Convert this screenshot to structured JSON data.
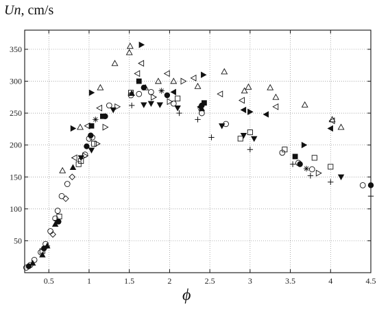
{
  "ylabel": {
    "symbol": "Un",
    "unit": ", cm/s"
  },
  "xlabel": "ϕ",
  "chart_data": {
    "type": "scatter",
    "title": "",
    "xlabel": "ϕ",
    "ylabel": "Un, cm/s",
    "xlim": [
      0.2,
      4.5
    ],
    "ylim": [
      0,
      380
    ],
    "xticks": [
      0.5,
      1,
      1.5,
      2,
      2.5,
      3,
      3.5,
      4,
      4.5
    ],
    "xtick_labels": [
      "0.5",
      "1",
      "1.5",
      "2",
      "2.5",
      "3",
      "3.5",
      "4",
      "4.5"
    ],
    "yticks": [
      50,
      100,
      150,
      200,
      250,
      300,
      350
    ],
    "ytick_labels": [
      "50",
      "100",
      "150",
      "200",
      "250",
      "300",
      "350"
    ],
    "grid": "dotted",
    "series": [
      {
        "marker": "circle-open",
        "points": [
          [
            0.22,
            8
          ],
          [
            0.27,
            12
          ],
          [
            0.32,
            20
          ],
          [
            0.4,
            32
          ],
          [
            0.46,
            45
          ],
          [
            0.52,
            65
          ],
          [
            0.58,
            85
          ],
          [
            0.61,
            97
          ],
          [
            0.66,
            120
          ],
          [
            0.73,
            139
          ],
          [
            0.95,
            185
          ],
          [
            1.0,
            210
          ],
          [
            1.04,
            212
          ],
          [
            1.25,
            262
          ],
          [
            1.52,
            278
          ],
          [
            1.62,
            280
          ],
          [
            1.77,
            283
          ],
          [
            2.05,
            265
          ],
          [
            2.4,
            250
          ],
          [
            2.7,
            233
          ],
          [
            3.4,
            188
          ],
          [
            3.6,
            172
          ],
          [
            3.77,
            162
          ],
          [
            4.4,
            137
          ]
        ]
      },
      {
        "marker": "circle-filled",
        "points": [
          [
            0.25,
            10
          ],
          [
            0.44,
            38
          ],
          [
            0.62,
            80
          ],
          [
            0.97,
            198
          ],
          [
            1.02,
            215
          ],
          [
            1.2,
            245
          ],
          [
            1.68,
            290
          ],
          [
            1.97,
            278
          ],
          [
            2.4,
            262
          ],
          [
            3.62,
            170
          ],
          [
            4.5,
            137
          ]
        ]
      },
      {
        "marker": "square-open",
        "points": [
          [
            0.42,
            34
          ],
          [
            0.63,
            88
          ],
          [
            0.87,
            170
          ],
          [
            0.9,
            175
          ],
          [
            1.06,
            202
          ],
          [
            1.52,
            282
          ],
          [
            2.1,
            273
          ],
          [
            2.88,
            210
          ],
          [
            3.0,
            220
          ],
          [
            3.43,
            193
          ],
          [
            3.8,
            180
          ],
          [
            4.0,
            166
          ]
        ]
      },
      {
        "marker": "square-filled",
        "points": [
          [
            1.03,
            230
          ],
          [
            1.17,
            245
          ],
          [
            1.62,
            300
          ],
          [
            2.43,
            266
          ],
          [
            3.56,
            182
          ]
        ]
      },
      {
        "marker": "triangle-up-open",
        "points": [
          [
            0.67,
            160
          ],
          [
            0.89,
            228
          ],
          [
            1.14,
            290
          ],
          [
            1.32,
            328
          ],
          [
            1.5,
            345
          ],
          [
            1.51,
            355
          ],
          [
            1.7,
            290
          ],
          [
            1.86,
            300
          ],
          [
            2.05,
            300
          ],
          [
            2.35,
            292
          ],
          [
            2.68,
            315
          ],
          [
            2.93,
            285
          ],
          [
            2.98,
            291
          ],
          [
            3.25,
            290
          ],
          [
            3.32,
            275
          ],
          [
            3.68,
            263
          ],
          [
            4.02,
            240
          ],
          [
            4.13,
            228
          ]
        ]
      },
      {
        "marker": "triangle-up-filled",
        "points": [
          [
            0.3,
            15
          ],
          [
            0.42,
            28
          ],
          [
            0.48,
            42
          ],
          [
            0.58,
            76
          ],
          [
            0.8,
            165
          ],
          [
            1.53,
            281
          ],
          [
            2.4,
            257
          ]
        ]
      },
      {
        "marker": "triangle-down-filled",
        "points": [
          [
            0.9,
            180
          ],
          [
            1.03,
            192
          ],
          [
            1.3,
            255
          ],
          [
            1.68,
            263
          ],
          [
            1.77,
            265
          ],
          [
            1.88,
            263
          ],
          [
            2.1,
            258
          ],
          [
            2.65,
            230
          ],
          [
            2.92,
            215
          ],
          [
            3.05,
            210
          ],
          [
            4.13,
            150
          ]
        ]
      },
      {
        "marker": "triangle-left-open",
        "points": [
          [
            0.82,
            180
          ],
          [
            0.98,
            230
          ],
          [
            1.13,
            258
          ],
          [
            1.6,
            312
          ],
          [
            1.65,
            328
          ],
          [
            1.97,
            312
          ],
          [
            2.3,
            305
          ],
          [
            2.63,
            280
          ],
          [
            2.9,
            270
          ],
          [
            3.32,
            260
          ],
          [
            4.02,
            238
          ]
        ]
      },
      {
        "marker": "triangle-left-filled",
        "points": [
          [
            2.05,
            283
          ],
          [
            2.38,
            260
          ],
          [
            2.92,
            255
          ],
          [
            3.2,
            248
          ],
          [
            4.0,
            226
          ]
        ]
      },
      {
        "marker": "triangle-right-open",
        "points": [
          [
            0.95,
            183
          ],
          [
            1.1,
            202
          ],
          [
            1.2,
            228
          ],
          [
            1.35,
            260
          ],
          [
            1.8,
            275
          ],
          [
            2.0,
            268
          ],
          [
            2.17,
            300
          ],
          [
            3.85,
            156
          ]
        ]
      },
      {
        "marker": "triangle-right-filled",
        "points": [
          [
            0.8,
            226
          ],
          [
            1.03,
            282
          ],
          [
            1.65,
            357
          ],
          [
            2.42,
            310
          ],
          [
            3.0,
            252
          ],
          [
            3.67,
            200
          ]
        ]
      },
      {
        "marker": "diamond-open",
        "points": [
          [
            0.55,
            60
          ],
          [
            0.71,
            116
          ],
          [
            0.79,
            150
          ]
        ]
      },
      {
        "marker": "plus",
        "points": [
          [
            0.48,
            42
          ],
          [
            0.6,
            82
          ],
          [
            1.53,
            262
          ],
          [
            2.12,
            250
          ],
          [
            2.35,
            240
          ],
          [
            2.52,
            212
          ],
          [
            3.0,
            193
          ],
          [
            3.53,
            170
          ],
          [
            3.75,
            152
          ],
          [
            4.0,
            142
          ],
          [
            4.5,
            120
          ]
        ]
      },
      {
        "marker": "star",
        "points": [
          [
            1.08,
            240
          ],
          [
            1.9,
            285
          ],
          [
            2.38,
            258
          ],
          [
            3.7,
            163
          ]
        ]
      }
    ]
  }
}
